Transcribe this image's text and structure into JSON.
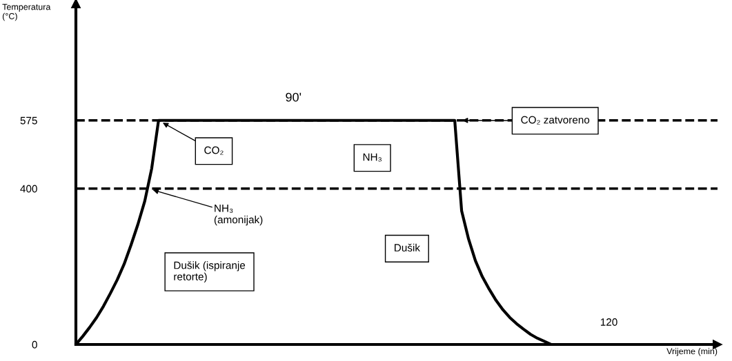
{
  "chart_data": {
    "type": "line",
    "ylabel": "Temperatura\n(°C)",
    "categories": [
      null,
      null,
      null,
      null,
      null,
      null,
      null,
      null,
      null,
      null,
      null,
      null,
      null,
      null,
      null,
      null,
      null,
      null,
      null,
      null,
      null,
      null,
      null,
      null,
      null,
      null,
      null,
      null,
      null,
      null,
      null,
      null,
      null,
      null,
      null,
      null,
      null,
      null,
      null,
      null,
      null,
      null,
      null,
      null,
      null,
      null,
      null,
      null,
      null,
      null,
      null,
      null,
      null,
      null,
      null,
      null,
      null,
      null,
      null,
      null,
      null,
      null,
      null,
      null,
      null,
      null,
      null,
      null,
      null,
      null
    ],
    "series": [
      {
        "color": "#000000",
        "values": [
          0,
          21,
          44,
          69,
          98,
          131,
          166,
          206,
          255,
          308,
          368,
          451,
          575,
          575,
          575,
          575,
          575,
          575,
          575,
          575,
          575,
          575,
          575,
          575,
          575,
          575,
          575,
          575,
          575,
          575,
          575,
          575,
          575,
          575,
          575,
          575,
          575,
          575,
          575,
          575,
          575,
          575,
          575,
          575,
          575,
          575,
          575,
          575,
          575,
          575,
          575,
          575,
          575,
          575,
          575,
          575,
          343,
          271,
          215,
          174,
          142,
          113,
          89,
          69,
          53,
          39,
          26,
          16,
          8,
          0
        ]
      }
    ],
    "ylim": [
      0,
      875
    ],
    "yticks": [
      0,
      400,
      575
    ],
    "ref_lines": [
      {
        "axis": "y",
        "value": 575,
        "line_style": "dashed",
        "color": "#000000"
      },
      {
        "axis": "y",
        "value": 400,
        "line_style": "dashed",
        "color": "#000000"
      }
    ],
    "annotations": [
      "90'",
      "CO₂ zatvoreno",
      "CO₂",
      "NH₃",
      "NH₃\n(amonijak)",
      "Dušik (ispiranje\nretorte)",
      "Dušik",
      "120",
      "Vrijeme (min)"
    ],
    "grid": false,
    "legend": false,
    "marker": "none",
    "line_style": "solid"
  }
}
